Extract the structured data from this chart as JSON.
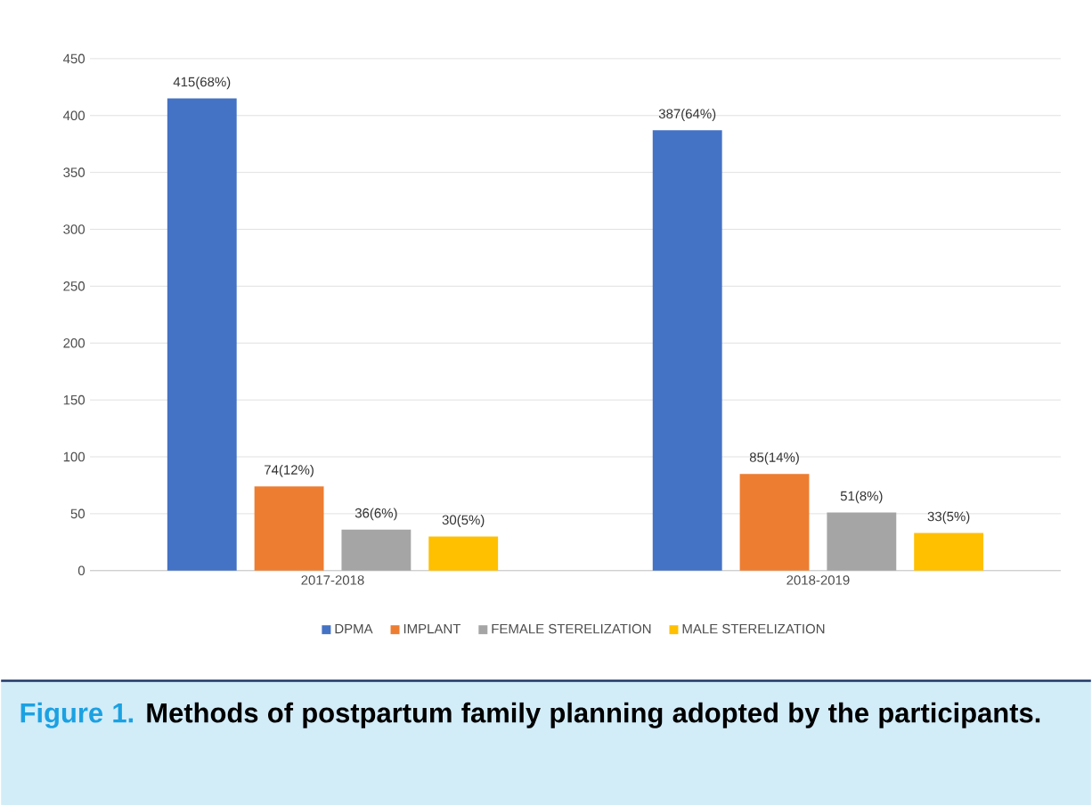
{
  "chart_data": {
    "type": "bar",
    "categories": [
      "2017-2018",
      "2018-2019"
    ],
    "series": [
      {
        "name": "DPMA",
        "color": "#4472c4",
        "values": [
          415,
          387
        ],
        "value_labels": [
          "415(68%)",
          "387(64%)"
        ]
      },
      {
        "name": "IMPLANT",
        "color": "#ed7d31",
        "values": [
          74,
          85
        ],
        "value_labels": [
          "74(12%)",
          "85(14%)"
        ]
      },
      {
        "name": "FEMALE STERELIZATION",
        "color": "#a5a5a5",
        "values": [
          36,
          51
        ],
        "value_labels": [
          "36(6%)",
          "51(8%)"
        ]
      },
      {
        "name": "MALE STERELIZATION",
        "color": "#ffc000",
        "values": [
          30,
          33
        ],
        "value_labels": [
          "30(5%)",
          "33(5%)"
        ]
      }
    ],
    "ylim": [
      0,
      450
    ],
    "yticks": [
      0,
      50,
      100,
      150,
      200,
      250,
      300,
      350,
      400,
      450
    ],
    "grid": "y",
    "legend": "bottom",
    "annotations": [
      "Figure 1.",
      "Methods of postpartum family planning adopted by the participants."
    ]
  }
}
